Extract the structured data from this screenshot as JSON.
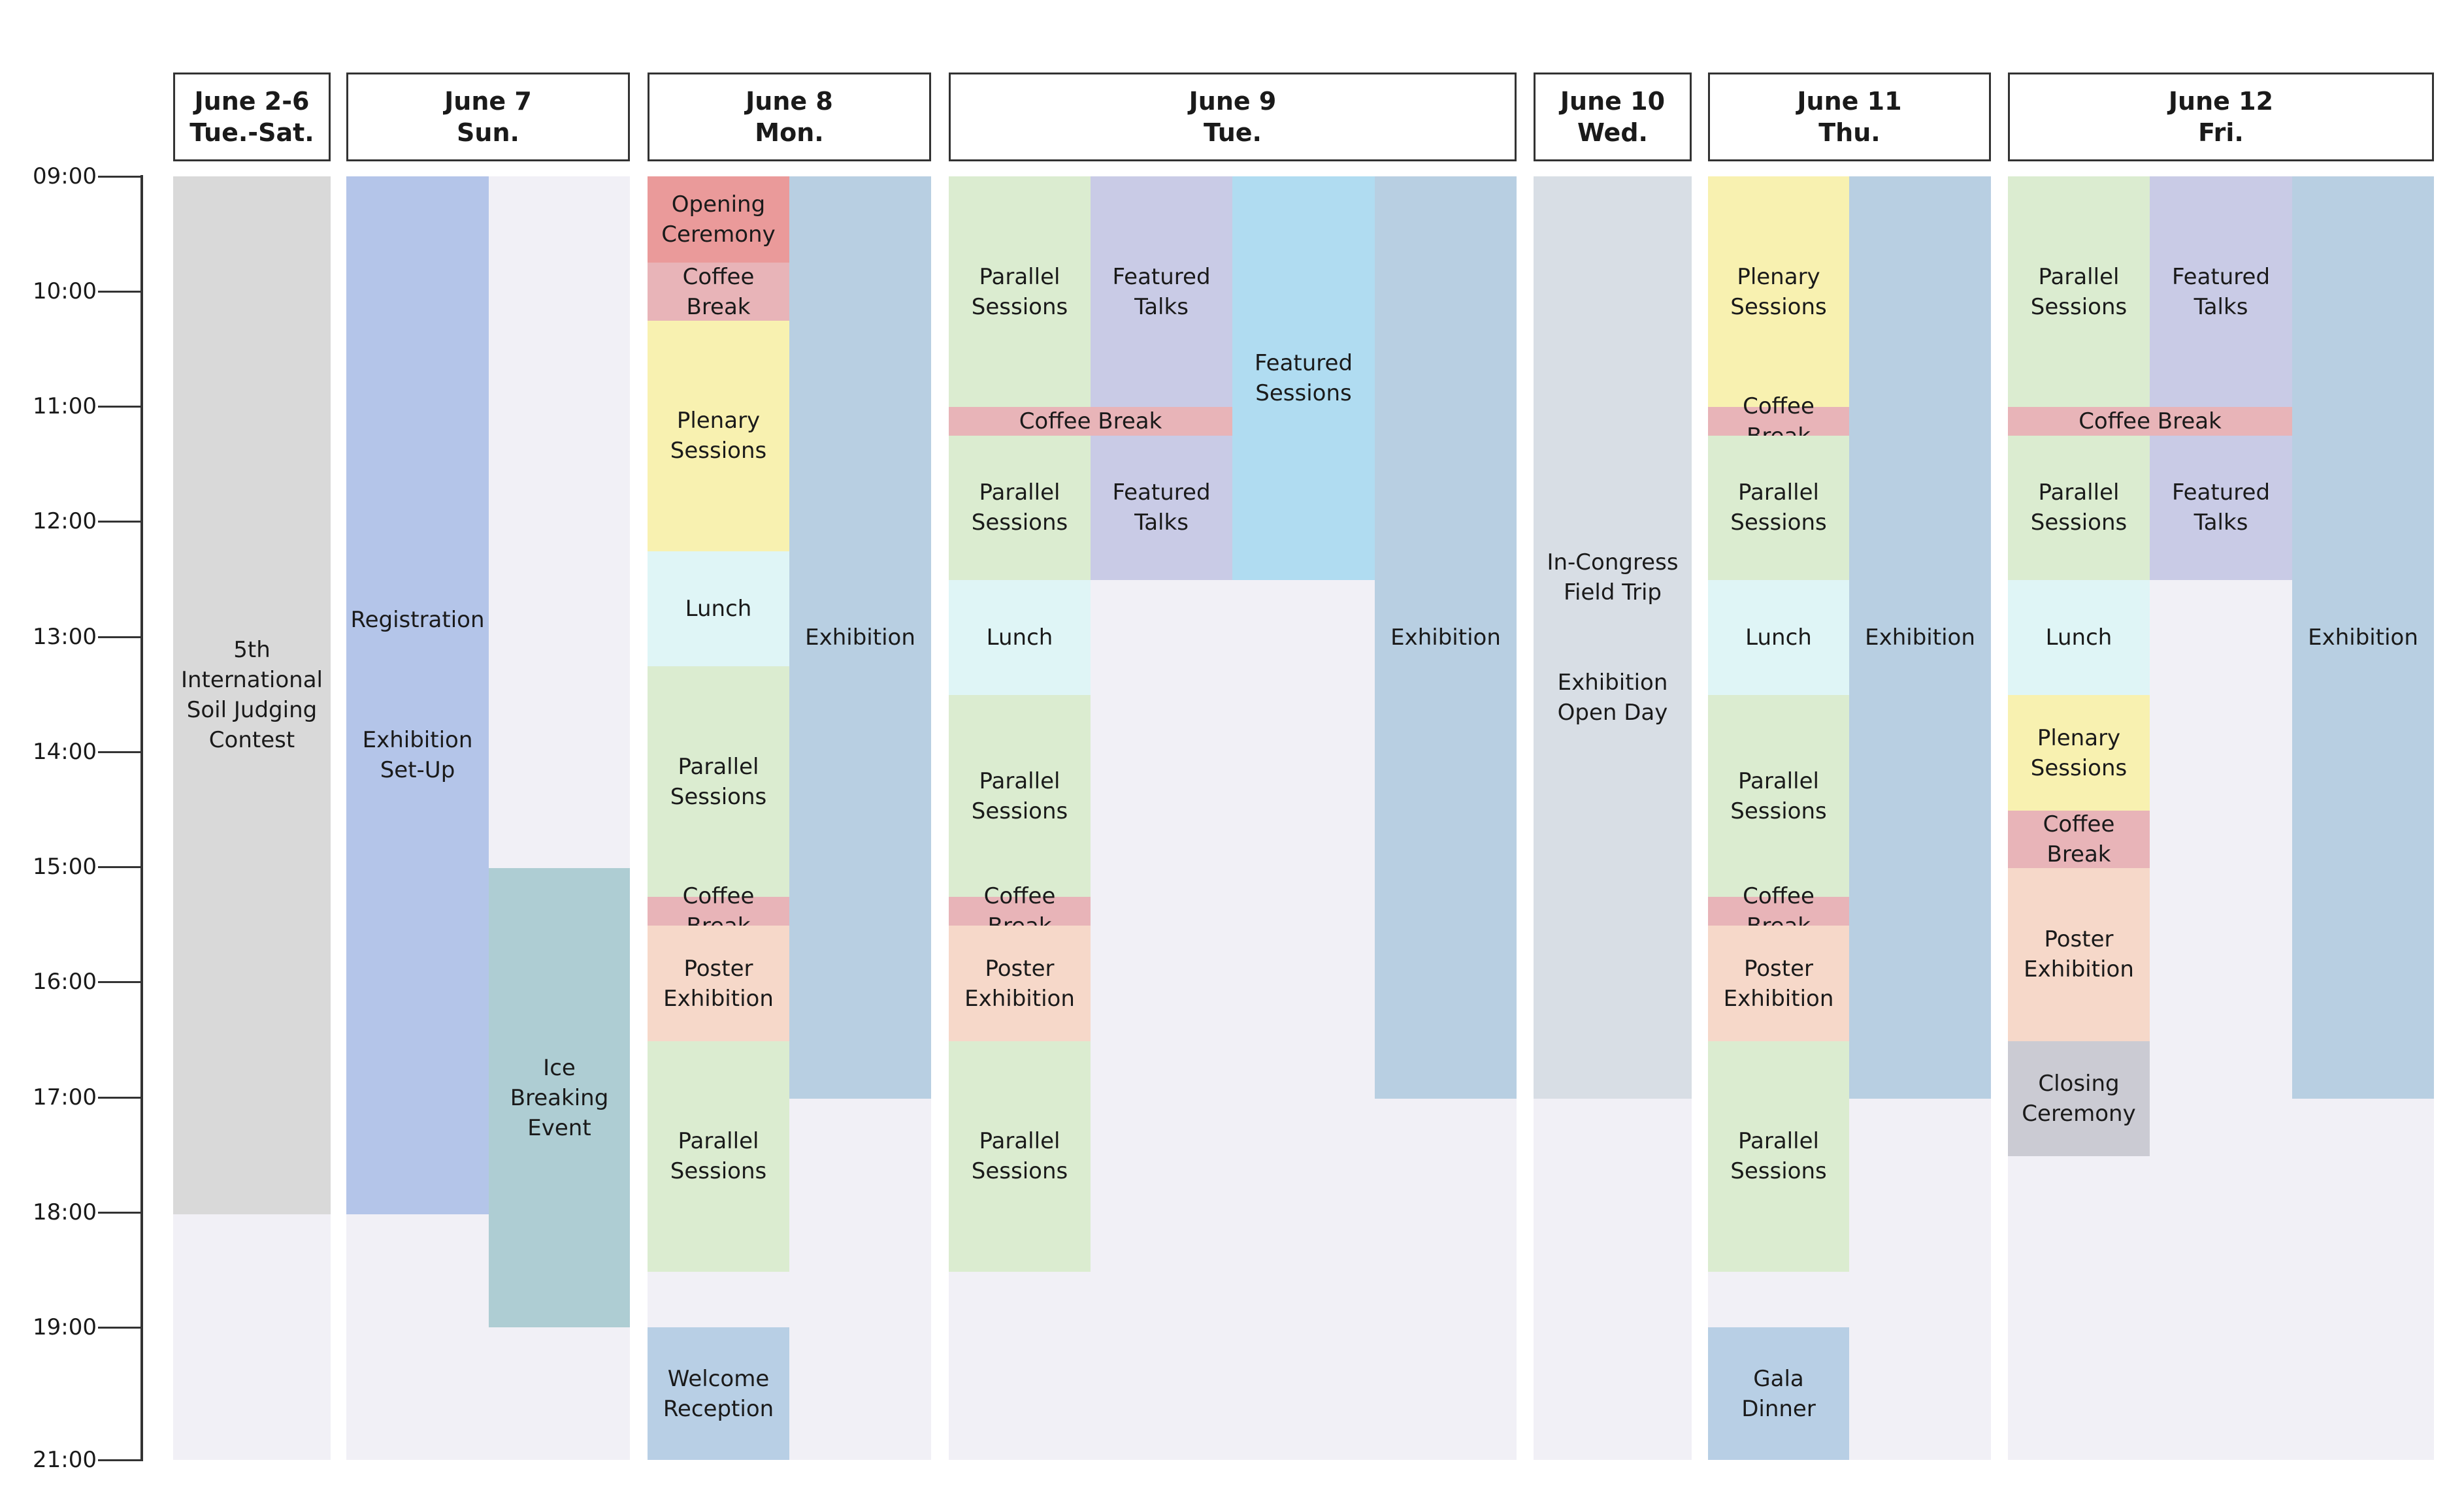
{
  "time_axis": {
    "ticks": [
      "09:00",
      "10:00",
      "11:00",
      "12:00",
      "13:00",
      "14:00",
      "15:00",
      "16:00",
      "17:00",
      "18:00",
      "19:00",
      "21:00"
    ]
  },
  "days": [
    {
      "date": "June 2-6",
      "weekday": "Tue.-Sat."
    },
    {
      "date": "June 7",
      "weekday": "Sun."
    },
    {
      "date": "June 8",
      "weekday": "Mon."
    },
    {
      "date": "June 9",
      "weekday": "Tue."
    },
    {
      "date": "June 10",
      "weekday": "Wed."
    },
    {
      "date": "June 11",
      "weekday": "Thu."
    },
    {
      "date": "June 12",
      "weekday": "Fri."
    }
  ],
  "colors": {
    "column_background": "#f1f0f6",
    "contest": "#d9d9d9",
    "registration": "#b4c5e9",
    "ice_breaking": "#aecdd3",
    "opening_ceremony": "#ea9a9a",
    "coffee_break": "#e8b4b8",
    "plenary": "#f8f1b0",
    "lunch": "#dff5f6",
    "parallel": "#dbecd0",
    "poster": "#f6d8c9",
    "exhibition": "#b8cfe2",
    "welcome_reception": "#b8cfe5",
    "featured_talks": "#c9cbe6",
    "featured_sessions": "#b0dcf1",
    "field_trip": "#d8dee5",
    "closing_ceremony": "#cbcbd3"
  },
  "events": {
    "contest": "5th\nInternational\nSoil Judging\nContest",
    "registration": "Registration\n\n\n\nExhibition\nSet-Up",
    "ice_breaking": "Ice\nBreaking\nEvent",
    "opening_ceremony": "Opening\nCeremony",
    "coffee_break": "Coffee Break",
    "plenary": "Plenary\nSessions",
    "lunch": "Lunch",
    "parallel": "Parallel\nSessions",
    "poster": "Poster\nExhibition",
    "exhibition": "Exhibition",
    "welcome_reception": "Welcome\nReception",
    "featured_talks": "Featured\nTalks",
    "featured_sessions": "Featured\nSessions",
    "field_trip": "In-Congress\nField Trip\n\n\nExhibition\nOpen Day",
    "gala_dinner": "Gala\nDinner",
    "closing_ceremony": "Closing\nCeremony"
  }
}
